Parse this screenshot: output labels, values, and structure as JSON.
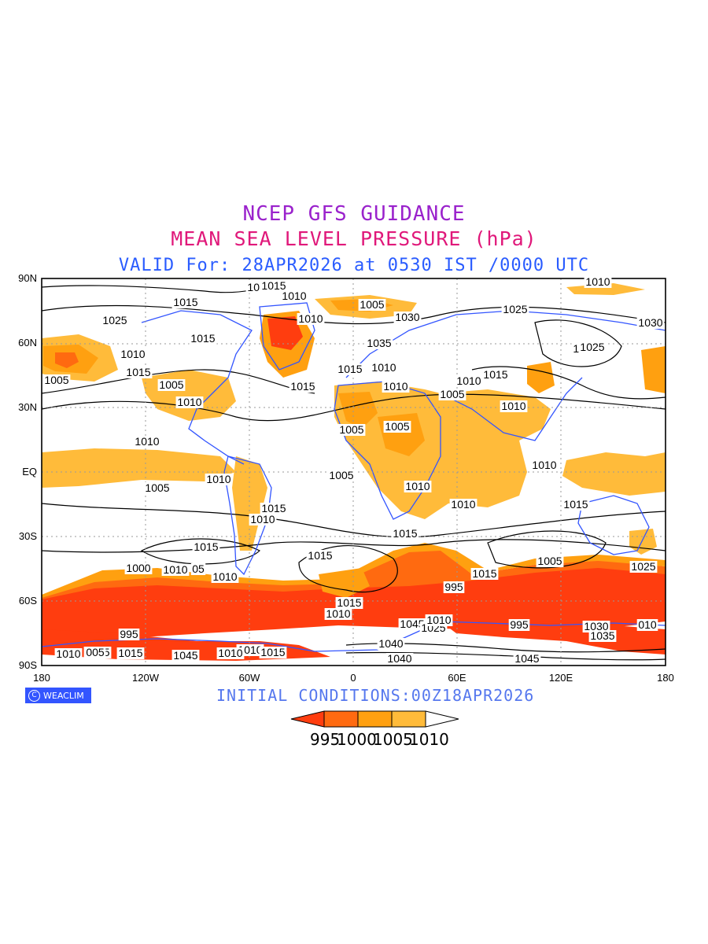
{
  "header": {
    "line1": "NCEP GFS GUIDANCE",
    "line2": "MEAN SEA LEVEL PRESSURE (hPa)",
    "line3": "VALID For: 28APR2026 at 0530 IST /0000 UTC"
  },
  "colors": {
    "line1": "#9a22cc",
    "line2": "#e0187a",
    "line3": "#2a5cff",
    "init": "#5577ee",
    "coast": "#3355ff",
    "c995": "#ff3d0f",
    "c1000": "#ff6a10",
    "c1005": "#ffa010",
    "c1010": "#ffbb3a"
  },
  "axes": {
    "lat_labels": [
      "90N",
      "60N",
      "30N",
      "EQ",
      "30S",
      "60S",
      "90S"
    ],
    "lon_labels": [
      "180",
      "120W",
      "60W",
      "0",
      "60E",
      "120E",
      "180"
    ]
  },
  "logo": {
    "icon": "copyright-circle-icon",
    "text": "WEACLIM"
  },
  "footer": {
    "init": "INITIAL CONDITIONS:00Z18APR2026"
  },
  "colorbar": {
    "labels": [
      "995",
      "1000",
      "1005",
      "1010"
    ]
  },
  "contour_labels": [
    "1015",
    "1015",
    "1010",
    "1005",
    "1005",
    "1010",
    "1030",
    "1015",
    "1010",
    "1025",
    "1015",
    "1030",
    "1035",
    "1025",
    "1025",
    "1010",
    "1015",
    "1015",
    "1005",
    "1005",
    "1010",
    "1010",
    "1005",
    "1015",
    "1010",
    "1010",
    "1010",
    "1005",
    "1005",
    "1005",
    "1015",
    "1010",
    "1010",
    "1010",
    "1010",
    "1010",
    "1010",
    "1015",
    "1015",
    "1015",
    "1010",
    "1015",
    "1025",
    "1015",
    "1005",
    "1025",
    "1000",
    "1010",
    "05",
    "1015",
    "995",
    "1015",
    "1010",
    "1045",
    "995",
    "1025",
    "1010",
    "1010",
    "1045",
    "1040",
    "1030",
    "010",
    "1035",
    "995",
    "1010",
    "005",
    "1015",
    "1045",
    "1010",
    "1015",
    "1040",
    "1045"
  ]
}
